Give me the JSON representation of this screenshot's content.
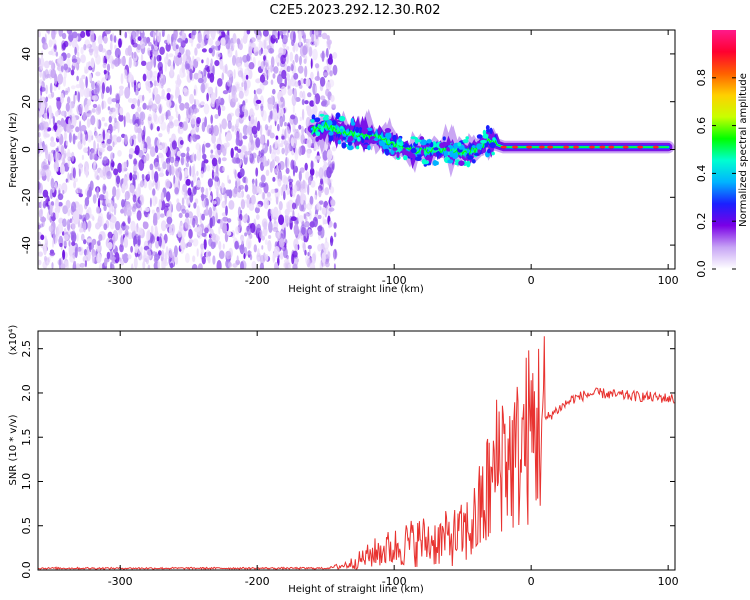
{
  "title": "C2E5.2023.292.12.30.R02",
  "chart_data": [
    {
      "type": "heatmap",
      "xlabel": "Height of straight line (km)",
      "ylabel": "Frequency (Hz)",
      "xlim": [
        -360,
        105
      ],
      "ylim": [
        -50,
        50
      ],
      "xticks": [
        -300,
        -200,
        -100,
        0,
        100
      ],
      "yticks": [
        -40,
        -20,
        0,
        20,
        40
      ],
      "noise_region_x": [
        -360,
        -143
      ],
      "signal_track": {
        "x": [
          -160,
          -150,
          -140,
          -130,
          -120,
          -110,
          -100,
          -90,
          -80,
          -70,
          -60,
          -50,
          -40,
          -30,
          -25,
          -20,
          -10,
          0,
          20,
          40,
          60,
          80,
          100
        ],
        "freq_hz": [
          8,
          10,
          8,
          6,
          6,
          5,
          2,
          0,
          -1,
          0,
          0,
          -1,
          0,
          4,
          2,
          1,
          1,
          1,
          1,
          1,
          1,
          1,
          1
        ]
      },
      "colorbar": {
        "label": "Normalized spectral amplitude",
        "range": [
          0.0,
          1.0
        ],
        "ticks": [
          "0.0",
          "0.2",
          "0.4",
          "0.6",
          "0.8"
        ],
        "colors": [
          "#ffffff",
          "#c7a4f5",
          "#7a00e6",
          "#1a20ff",
          "#00b4ff",
          "#00ffd0",
          "#00ff00",
          "#c8ff00",
          "#ffd000",
          "#ff6000",
          "#ff0030",
          "#ff1a8a"
        ]
      }
    },
    {
      "type": "line",
      "xlabel": "Height of straight line (km)",
      "ylabel": "SNR (10 * v/v)",
      "y_multiplier": "(x10⁴)",
      "xlim": [
        -360,
        105
      ],
      "ylim": [
        0,
        2.7
      ],
      "xticks": [
        -300,
        -200,
        -100,
        0,
        100
      ],
      "yticks": [
        "0.0",
        "0.5",
        "1.0",
        "1.5",
        "2.0",
        "2.5"
      ],
      "color": "#e8322f",
      "x": [
        -360,
        -300,
        -200,
        -150,
        -140,
        -130,
        -120,
        -110,
        -100,
        -90,
        -80,
        -70,
        -60,
        -50,
        -40,
        -35,
        -30,
        -25,
        -20,
        -15,
        -10,
        -5,
        0,
        10,
        20,
        30,
        40,
        50,
        60,
        70,
        80,
        90,
        100,
        105
      ],
      "values": [
        0.02,
        0.02,
        0.02,
        0.02,
        0.04,
        0.08,
        0.15,
        0.22,
        0.25,
        0.3,
        0.33,
        0.32,
        0.36,
        0.4,
        0.55,
        0.75,
        0.9,
        1.2,
        1.4,
        1.2,
        1.3,
        1.45,
        1.55,
        1.7,
        1.82,
        1.93,
        1.98,
        2.0,
        1.98,
        1.97,
        1.96,
        1.95,
        1.94,
        1.93
      ]
    }
  ]
}
